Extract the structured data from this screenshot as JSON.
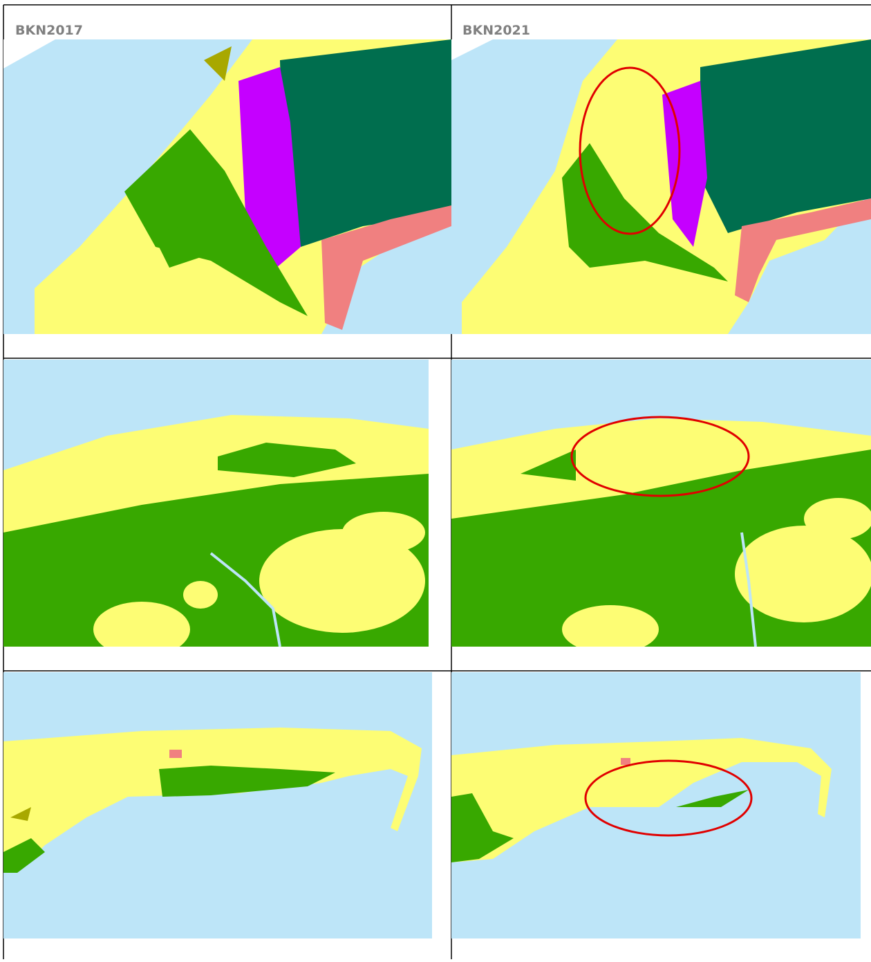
{
  "table": {
    "headers": [
      "BKN2017",
      "BKN2021"
    ]
  }
}
